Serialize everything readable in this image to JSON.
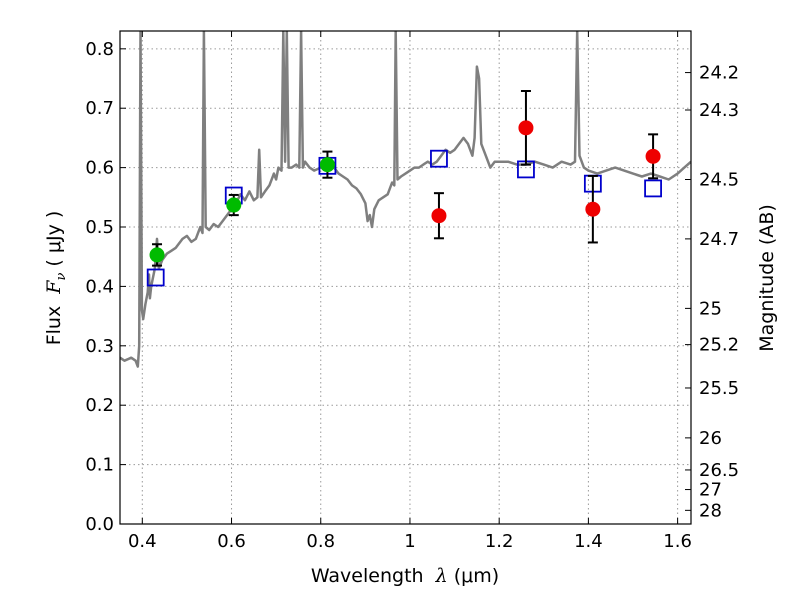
{
  "chart_data": {
    "type": "scatter",
    "title": "",
    "xlabel": {
      "prefix": "Wavelength  ",
      "symbol": "λ",
      "suffix": " (μm)"
    },
    "ylabel": {
      "prefix": "Flux  ",
      "symbol": "F",
      "subscript": "ν",
      "suffix": " ( μJy )"
    },
    "ylabel_right": "Magnitude (AB)",
    "xlim": [
      0.35,
      1.63
    ],
    "ylim": [
      0.0,
      0.83
    ],
    "grid": true,
    "x_ticks": [
      0.4,
      0.6,
      0.8,
      1.0,
      1.2,
      1.4,
      1.6
    ],
    "x_tick_labels": [
      "0.4",
      "0.6",
      "0.8",
      "1",
      "1.2",
      "1.4",
      "1.6"
    ],
    "y_ticks": [
      0.0,
      0.1,
      0.2,
      0.3,
      0.4,
      0.5,
      0.6,
      0.7,
      0.8
    ],
    "y_tick_labels": [
      "0.0",
      "0.1",
      "0.2",
      "0.3",
      "0.4",
      "0.5",
      "0.6",
      "0.7",
      "0.8"
    ],
    "right_ticks": [
      {
        "label": "24.2",
        "flux": 0.76
      },
      {
        "label": "24.3",
        "flux": 0.697
      },
      {
        "label": "24.5",
        "flux": 0.58
      },
      {
        "label": "24.7",
        "flux": 0.48
      },
      {
        "label": "25",
        "flux": 0.363
      },
      {
        "label": "25.2",
        "flux": 0.302
      },
      {
        "label": "25.5",
        "flux": 0.229
      },
      {
        "label": "26",
        "flux": 0.145
      },
      {
        "label": "26.5",
        "flux": 0.091
      },
      {
        "label": "27",
        "flux": 0.058
      },
      {
        "label": "28",
        "flux": 0.023
      }
    ],
    "colors": {
      "spectrum": "#7f7f7f",
      "model": "#0000cc",
      "optical": "#00bb00",
      "nir": "#ee0000",
      "errorbar": "#000000",
      "grid": "#9a9a9a"
    },
    "spectrum": [
      [
        0.35,
        0.28
      ],
      [
        0.36,
        0.275
      ],
      [
        0.375,
        0.28
      ],
      [
        0.385,
        0.275
      ],
      [
        0.39,
        0.265
      ],
      [
        0.393,
        0.3
      ],
      [
        0.396,
        0.83
      ],
      [
        0.399,
        0.36
      ],
      [
        0.402,
        0.345
      ],
      [
        0.407,
        0.37
      ],
      [
        0.412,
        0.39
      ],
      [
        0.415,
        0.42
      ],
      [
        0.417,
        0.38
      ],
      [
        0.42,
        0.4
      ],
      [
        0.428,
        0.43
      ],
      [
        0.433,
        0.48
      ],
      [
        0.437,
        0.43
      ],
      [
        0.445,
        0.445
      ],
      [
        0.455,
        0.455
      ],
      [
        0.465,
        0.46
      ],
      [
        0.475,
        0.465
      ],
      [
        0.49,
        0.48
      ],
      [
        0.5,
        0.485
      ],
      [
        0.51,
        0.475
      ],
      [
        0.52,
        0.48
      ],
      [
        0.53,
        0.5
      ],
      [
        0.535,
        0.49
      ],
      [
        0.538,
        0.83
      ],
      [
        0.542,
        0.5
      ],
      [
        0.55,
        0.495
      ],
      [
        0.56,
        0.505
      ],
      [
        0.57,
        0.5
      ],
      [
        0.58,
        0.51
      ],
      [
        0.59,
        0.52
      ],
      [
        0.6,
        0.53
      ],
      [
        0.61,
        0.54
      ],
      [
        0.62,
        0.555
      ],
      [
        0.63,
        0.545
      ],
      [
        0.64,
        0.56
      ],
      [
        0.65,
        0.545
      ],
      [
        0.658,
        0.55
      ],
      [
        0.662,
        0.63
      ],
      [
        0.666,
        0.55
      ],
      [
        0.675,
        0.56
      ],
      [
        0.685,
        0.57
      ],
      [
        0.695,
        0.59
      ],
      [
        0.7,
        0.58
      ],
      [
        0.705,
        0.6
      ],
      [
        0.712,
        0.595
      ],
      [
        0.716,
        0.83
      ],
      [
        0.72,
        0.61
      ],
      [
        0.724,
        0.83
      ],
      [
        0.728,
        0.6
      ],
      [
        0.735,
        0.6
      ],
      [
        0.745,
        0.605
      ],
      [
        0.752,
        0.6
      ],
      [
        0.756,
        0.83
      ],
      [
        0.76,
        0.6
      ],
      [
        0.765,
        0.61
      ],
      [
        0.775,
        0.6
      ],
      [
        0.785,
        0.595
      ],
      [
        0.8,
        0.6
      ],
      [
        0.815,
        0.605
      ],
      [
        0.83,
        0.6
      ],
      [
        0.84,
        0.59
      ],
      [
        0.85,
        0.585
      ],
      [
        0.86,
        0.58
      ],
      [
        0.87,
        0.57
      ],
      [
        0.88,
        0.565
      ],
      [
        0.89,
        0.555
      ],
      [
        0.9,
        0.54
      ],
      [
        0.905,
        0.51
      ],
      [
        0.91,
        0.52
      ],
      [
        0.915,
        0.5
      ],
      [
        0.92,
        0.53
      ],
      [
        0.93,
        0.545
      ],
      [
        0.94,
        0.55
      ],
      [
        0.95,
        0.555
      ],
      [
        0.96,
        0.575
      ],
      [
        0.965,
        0.57
      ],
      [
        0.968,
        0.83
      ],
      [
        0.972,
        0.58
      ],
      [
        0.98,
        0.585
      ],
      [
        0.99,
        0.59
      ],
      [
        1.0,
        0.595
      ],
      [
        1.01,
        0.6
      ],
      [
        1.02,
        0.6
      ],
      [
        1.03,
        0.605
      ],
      [
        1.04,
        0.61
      ],
      [
        1.05,
        0.605
      ],
      [
        1.06,
        0.61
      ],
      [
        1.07,
        0.62
      ],
      [
        1.08,
        0.63
      ],
      [
        1.09,
        0.625
      ],
      [
        1.1,
        0.63
      ],
      [
        1.11,
        0.64
      ],
      [
        1.12,
        0.65
      ],
      [
        1.13,
        0.64
      ],
      [
        1.14,
        0.62
      ],
      [
        1.145,
        0.65
      ],
      [
        1.15,
        0.77
      ],
      [
        1.155,
        0.75
      ],
      [
        1.16,
        0.64
      ],
      [
        1.17,
        0.62
      ],
      [
        1.18,
        0.6
      ],
      [
        1.19,
        0.61
      ],
      [
        1.2,
        0.61
      ],
      [
        1.22,
        0.61
      ],
      [
        1.24,
        0.605
      ],
      [
        1.26,
        0.605
      ],
      [
        1.28,
        0.61
      ],
      [
        1.3,
        0.605
      ],
      [
        1.32,
        0.6
      ],
      [
        1.34,
        0.61
      ],
      [
        1.36,
        0.605
      ],
      [
        1.37,
        0.61
      ],
      [
        1.375,
        0.83
      ],
      [
        1.38,
        0.62
      ],
      [
        1.39,
        0.6
      ],
      [
        1.4,
        0.595
      ],
      [
        1.42,
        0.59
      ],
      [
        1.44,
        0.595
      ],
      [
        1.46,
        0.6
      ],
      [
        1.48,
        0.595
      ],
      [
        1.5,
        0.59
      ],
      [
        1.52,
        0.585
      ],
      [
        1.54,
        0.59
      ],
      [
        1.56,
        0.585
      ],
      [
        1.58,
        0.58
      ],
      [
        1.6,
        0.59
      ],
      [
        1.615,
        0.6
      ],
      [
        1.63,
        0.61
      ]
    ],
    "model_points": [
      {
        "x": 0.43,
        "y": 0.415
      },
      {
        "x": 0.605,
        "y": 0.553
      },
      {
        "x": 0.815,
        "y": 0.603
      },
      {
        "x": 1.065,
        "y": 0.615
      },
      {
        "x": 1.26,
        "y": 0.597
      },
      {
        "x": 1.41,
        "y": 0.573
      },
      {
        "x": 1.545,
        "y": 0.565
      }
    ],
    "optical_points": [
      {
        "x": 0.433,
        "y": 0.453,
        "err": 0.018
      },
      {
        "x": 0.605,
        "y": 0.537,
        "err": 0.017
      },
      {
        "x": 0.815,
        "y": 0.605,
        "err": 0.022
      }
    ],
    "nir_points": [
      {
        "x": 1.065,
        "y": 0.519,
        "err": 0.038
      },
      {
        "x": 1.26,
        "y": 0.667,
        "err": 0.062
      },
      {
        "x": 1.41,
        "y": 0.53,
        "err": 0.056
      },
      {
        "x": 1.545,
        "y": 0.619,
        "err": 0.037
      }
    ]
  }
}
